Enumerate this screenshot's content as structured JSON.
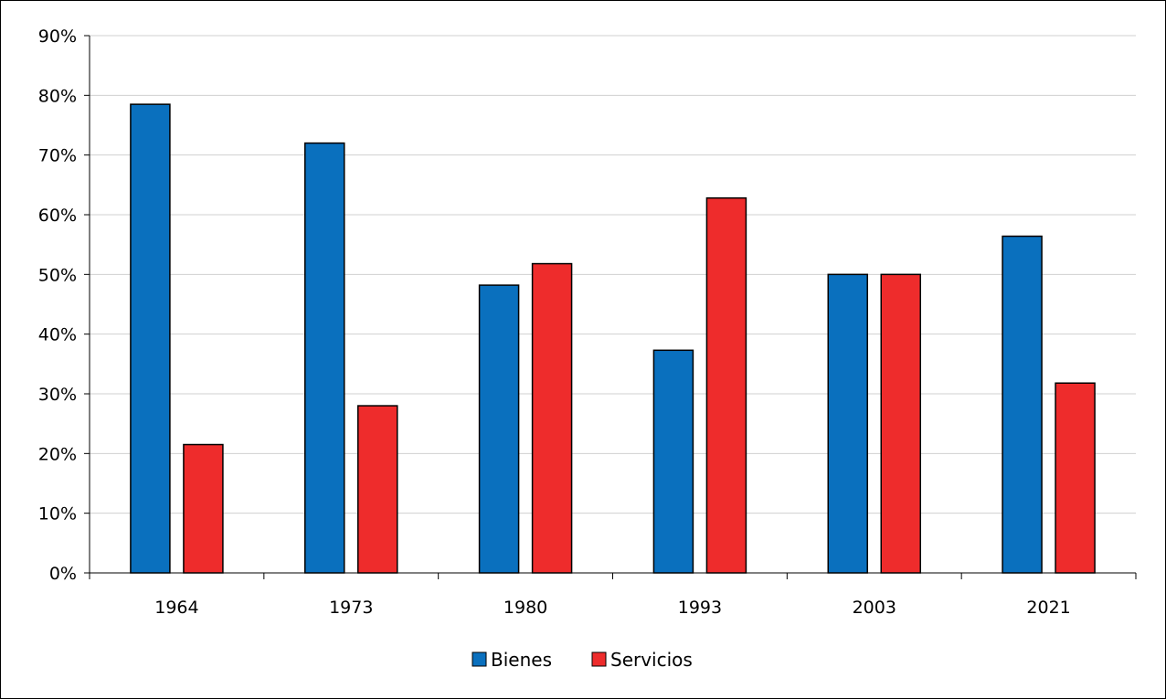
{
  "chart_data": {
    "type": "bar",
    "title": "",
    "xlabel": "",
    "ylabel": "",
    "categories": [
      "1964",
      "1973",
      "1980",
      "1993",
      "2003",
      "2021"
    ],
    "series": [
      {
        "name": "Bienes",
        "color": "#0a70be",
        "values": [
          78.5,
          72,
          48.2,
          37.3,
          50,
          56.4
        ]
      },
      {
        "name": "Servicios",
        "color": "#ee2c2c",
        "values": [
          21.5,
          28,
          51.8,
          62.8,
          50,
          31.8
        ]
      }
    ],
    "ylim": [
      0,
      90
    ],
    "yticks": [
      0,
      10,
      20,
      30,
      40,
      50,
      60,
      70,
      80,
      90
    ],
    "ytick_labels": [
      "0%",
      "10%",
      "20%",
      "30%",
      "40%",
      "50%",
      "60%",
      "70%",
      "80%",
      "90%"
    ],
    "grid": true,
    "legend_position": "bottom"
  }
}
